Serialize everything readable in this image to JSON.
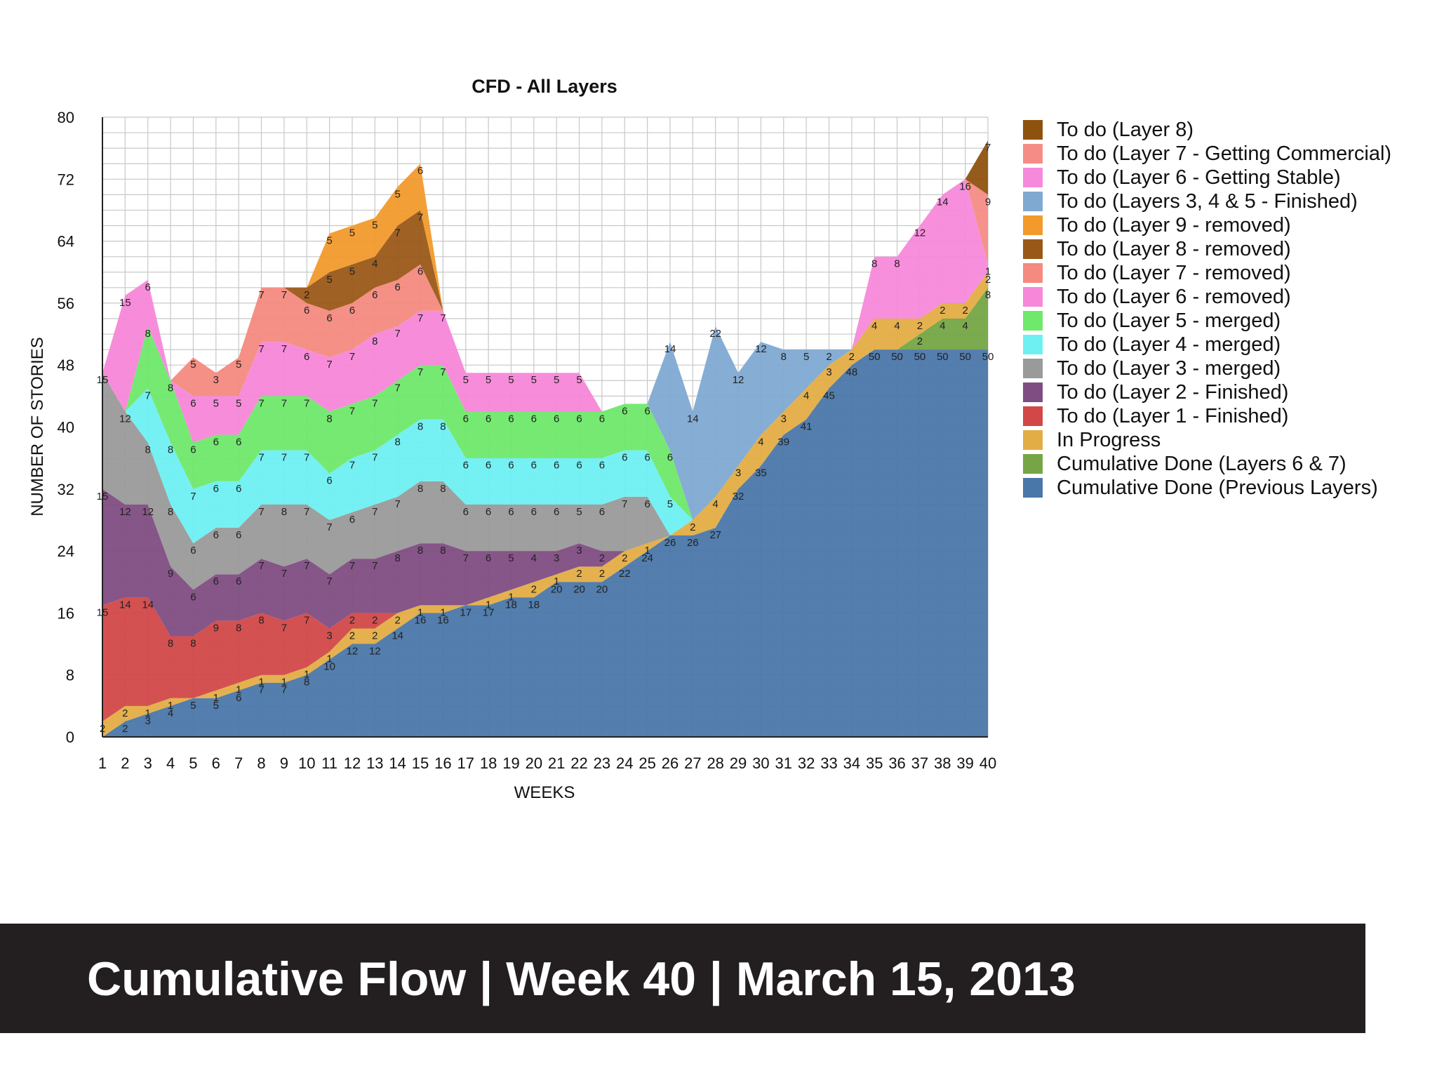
{
  "caption": "Cumulative Flow | Week 40 | March 15, 2013",
  "chart_data": {
    "type": "area",
    "stacked": true,
    "title": "CFD - All Layers",
    "xlabel": "WEEKS",
    "ylabel": "NUMBER OF STORIES",
    "ylim": [
      0,
      80
    ],
    "yticks": [
      0,
      8,
      16,
      24,
      32,
      40,
      48,
      56,
      64,
      72,
      80
    ],
    "x": [
      1,
      2,
      3,
      4,
      5,
      6,
      7,
      8,
      9,
      10,
      11,
      12,
      13,
      14,
      15,
      16,
      17,
      18,
      19,
      20,
      21,
      22,
      23,
      24,
      25,
      26,
      27,
      28,
      29,
      30,
      31,
      32,
      33,
      34,
      35,
      36,
      37,
      38,
      39,
      40
    ],
    "grid": true,
    "legend_position": "right",
    "series": [
      {
        "name": "Cumulative Done (Previous Layers)",
        "color": "#4a77a9",
        "values": [
          0,
          2,
          3,
          4,
          5,
          5,
          6,
          7,
          7,
          8,
          10,
          12,
          12,
          14,
          16,
          16,
          17,
          17,
          18,
          18,
          20,
          20,
          20,
          22,
          24,
          26,
          26,
          27,
          32,
          35,
          39,
          41,
          45,
          48,
          50,
          50,
          50,
          50,
          50,
          50
        ]
      },
      {
        "name": "Cumulative Done (Layers 6 & 7)",
        "color": "#75a545",
        "values": [
          0,
          0,
          0,
          0,
          0,
          0,
          0,
          0,
          0,
          0,
          0,
          0,
          0,
          0,
          0,
          0,
          0,
          0,
          0,
          0,
          0,
          0,
          0,
          0,
          0,
          0,
          0,
          0,
          0,
          0,
          0,
          0,
          0,
          0,
          0,
          0,
          2,
          4,
          4,
          8
        ]
      },
      {
        "name": "In Progress",
        "color": "#e3ad45",
        "values": [
          2,
          2,
          1,
          1,
          0,
          1,
          1,
          1,
          1,
          1,
          1,
          2,
          2,
          2,
          1,
          1,
          0,
          1,
          1,
          2,
          1,
          2,
          2,
          2,
          1,
          0,
          2,
          4,
          3,
          4,
          3,
          4,
          3,
          2,
          4,
          4,
          2,
          2,
          2,
          2
        ]
      },
      {
        "name": "To do (Layer 1 - Finished)",
        "color": "#d24848",
        "values": [
          15,
          14,
          14,
          8,
          8,
          9,
          8,
          8,
          7,
          7,
          3,
          2,
          2,
          0,
          0,
          0,
          0,
          0,
          0,
          0,
          0,
          0,
          0,
          0,
          0,
          0,
          0,
          0,
          0,
          0,
          0,
          0,
          0,
          0,
          0,
          0,
          0,
          0,
          0,
          0
        ]
      },
      {
        "name": "To do (Layer 2 - Finished)",
        "color": "#7f4d82",
        "values": [
          15,
          12,
          12,
          9,
          6,
          6,
          6,
          7,
          7,
          7,
          7,
          7,
          7,
          8,
          8,
          8,
          7,
          6,
          5,
          4,
          3,
          3,
          2,
          0,
          0,
          0,
          0,
          0,
          0,
          0,
          0,
          0,
          0,
          0,
          0,
          0,
          0,
          0,
          0,
          0
        ]
      },
      {
        "name": "To do (Layer 3 - merged)",
        "color": "#9a9a9a",
        "values": [
          15,
          12,
          8,
          8,
          6,
          6,
          6,
          7,
          8,
          7,
          7,
          6,
          7,
          7,
          8,
          8,
          6,
          6,
          6,
          6,
          6,
          5,
          6,
          7,
          6,
          0,
          0,
          0,
          0,
          0,
          0,
          0,
          0,
          0,
          0,
          0,
          0,
          0,
          0,
          0
        ]
      },
      {
        "name": "To do (Layer 4 - merged)",
        "color": "#6ef0f2",
        "values": [
          0,
          0,
          7,
          8,
          7,
          6,
          6,
          7,
          7,
          7,
          6,
          7,
          7,
          8,
          8,
          8,
          6,
          6,
          6,
          6,
          6,
          6,
          6,
          6,
          6,
          5,
          0,
          0,
          0,
          0,
          0,
          0,
          0,
          0,
          0,
          0,
          0,
          0,
          0,
          0
        ]
      },
      {
        "name": "To do (Layer 5 - merged)",
        "color": "#6fe86c",
        "values": [
          0,
          0,
          8,
          8,
          6,
          6,
          6,
          7,
          7,
          7,
          8,
          7,
          7,
          7,
          7,
          7,
          6,
          6,
          6,
          6,
          6,
          6,
          6,
          6,
          6,
          6,
          0,
          0,
          0,
          0,
          0,
          0,
          0,
          0,
          0,
          0,
          0,
          0,
          0,
          0
        ]
      },
      {
        "name": "To do (Layer 6 - removed)",
        "color": "#f787d8",
        "values": [
          0,
          15,
          6,
          0,
          6,
          5,
          5,
          7,
          7,
          6,
          7,
          7,
          8,
          7,
          7,
          7,
          5,
          5,
          5,
          5,
          5,
          5,
          0,
          0,
          0,
          0,
          0,
          0,
          0,
          0,
          0,
          0,
          0,
          0,
          0,
          0,
          0,
          0,
          0,
          0
        ]
      },
      {
        "name": "To do (Layer 7 - removed)",
        "color": "#f48a80",
        "values": [
          0,
          0,
          0,
          0,
          5,
          3,
          5,
          7,
          7,
          6,
          6,
          6,
          6,
          6,
          6,
          0,
          0,
          0,
          0,
          0,
          0,
          0,
          0,
          0,
          0,
          0,
          0,
          0,
          0,
          0,
          0,
          0,
          0,
          0,
          0,
          0,
          0,
          0,
          0,
          0
        ]
      },
      {
        "name": "To do (Layer 8 - removed)",
        "color": "#9a5818",
        "values": [
          0,
          0,
          0,
          0,
          0,
          0,
          0,
          0,
          0,
          2,
          5,
          5,
          4,
          7,
          7,
          0,
          0,
          0,
          0,
          0,
          0,
          0,
          0,
          0,
          0,
          0,
          0,
          0,
          0,
          0,
          0,
          0,
          0,
          0,
          0,
          0,
          0,
          0,
          0,
          0
        ]
      },
      {
        "name": "To do (Layer 9 - removed)",
        "color": "#f29a2c",
        "values": [
          0,
          0,
          0,
          0,
          0,
          0,
          0,
          0,
          0,
          0,
          5,
          5,
          5,
          5,
          6,
          0,
          0,
          0,
          0,
          0,
          0,
          0,
          0,
          0,
          0,
          0,
          0,
          0,
          0,
          0,
          0,
          0,
          0,
          0,
          0,
          0,
          0,
          0,
          0,
          0
        ]
      },
      {
        "name": "To do (Layers 3, 4 & 5 - Finished)",
        "color": "#80a9d2",
        "values": [
          0,
          0,
          0,
          0,
          0,
          0,
          0,
          0,
          0,
          0,
          0,
          0,
          0,
          0,
          0,
          0,
          0,
          0,
          0,
          0,
          0,
          0,
          0,
          0,
          0,
          14,
          14,
          22,
          12,
          12,
          8,
          5,
          2,
          0,
          0,
          0,
          0,
          0,
          0,
          0
        ]
      },
      {
        "name": "To do (Layer 6 - Getting Stable)",
        "color": "#f789db",
        "values": [
          0,
          0,
          0,
          0,
          0,
          0,
          0,
          0,
          0,
          0,
          0,
          0,
          0,
          0,
          0,
          0,
          0,
          0,
          0,
          0,
          0,
          0,
          0,
          0,
          0,
          0,
          0,
          0,
          0,
          0,
          0,
          0,
          0,
          0,
          8,
          8,
          12,
          14,
          16,
          1
        ]
      },
      {
        "name": "To do (Layer 7 - Getting Commercial)",
        "color": "#f68c86",
        "values": [
          0,
          0,
          0,
          0,
          0,
          0,
          0,
          0,
          0,
          0,
          0,
          0,
          0,
          0,
          0,
          0,
          0,
          0,
          0,
          0,
          0,
          0,
          0,
          0,
          0,
          0,
          0,
          0,
          0,
          0,
          0,
          0,
          0,
          0,
          0,
          0,
          0,
          0,
          0,
          9
        ]
      },
      {
        "name": "To do (Layer 8)",
        "color": "#8e520f",
        "values": [
          0,
          0,
          0,
          0,
          0,
          0,
          0,
          0,
          0,
          0,
          0,
          0,
          0,
          0,
          0,
          0,
          0,
          0,
          0,
          0,
          0,
          0,
          0,
          0,
          0,
          0,
          0,
          0,
          0,
          0,
          0,
          0,
          0,
          0,
          0,
          0,
          0,
          0,
          0,
          7
        ]
      }
    ]
  }
}
